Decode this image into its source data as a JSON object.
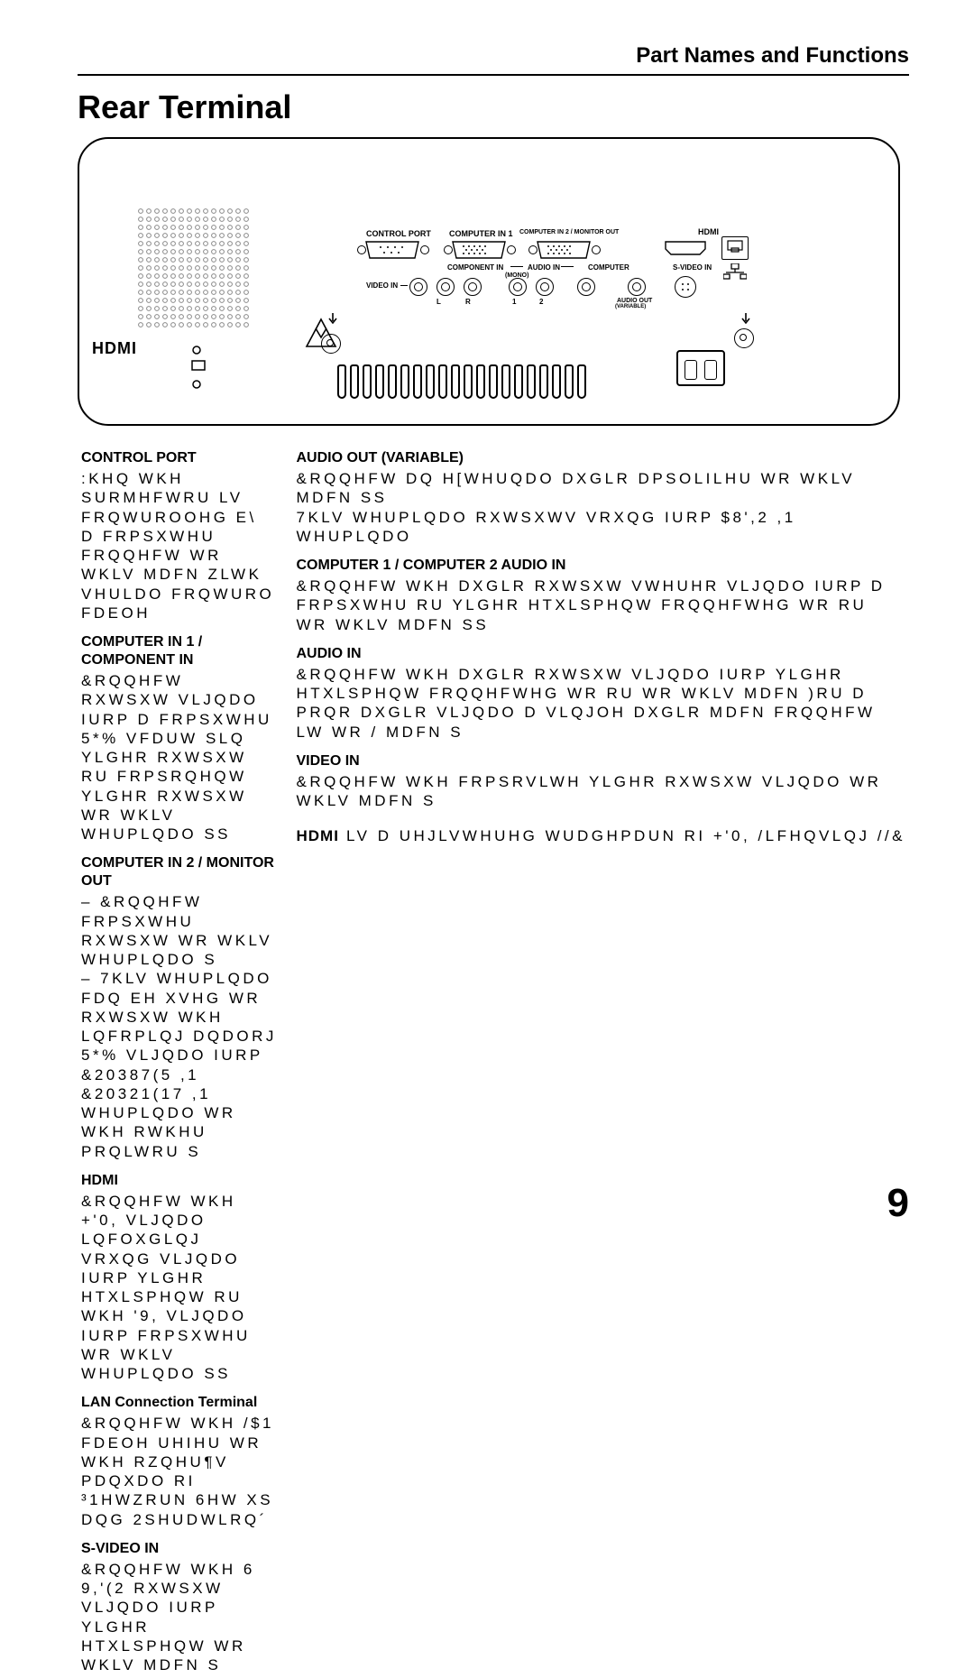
{
  "header": {
    "section_title": "Part Names and Functions"
  },
  "title": "Rear Terminal",
  "page_number": "9",
  "diagram": {
    "hdmi_logo": "HDMI",
    "labels": {
      "control_port": "CONTROL PORT",
      "comp_in_1": "COMPUTER IN 1",
      "comp_in_2_mon": "COMPUTER IN 2 / MONITOR OUT",
      "hdmi": "HDMI",
      "component_in": "COMPONENT IN",
      "audio_in": "AUDIO IN",
      "audio_in_mono": "(MONO)",
      "audio_1": "1",
      "audio_2": "2",
      "computer": "COMPUTER",
      "s_video_in": "S-VIDEO IN",
      "video_in": "VIDEO IN",
      "audio_L": "L",
      "audio_R": "R",
      "audio_out": "AUDIO OUT",
      "variable": "(VARIABLE)"
    }
  },
  "left_col": {
    "control_port": {
      "h": "CONTROL PORT",
      "t": ":KHQ WKH SURMHFWRU LV FRQWUROOHG E\\ D FRPSXWHU FRQQHFW WR WKLV MDFN ZLWK VHULDO FRQWURO FDEOH"
    },
    "cin1": {
      "h": "COMPUTER IN 1 / COMPONENT IN",
      "t": "&RQQHFW RXWSXW VLJQDO IURP D FRPSXWHU 5*% VFDUW  SLQ YLGHR RXWSXW RU FRPSRQHQW YLGHR RXWSXW WR WKLV WHUPLQDO SS "
    },
    "cin2": {
      "h": "COMPUTER IN 2 / MONITOR OUT",
      "t": "– &RQQHFW FRPSXWHU RXWSXW WR WKLV WHUPLQDO S \n– 7KLV WHUPLQDO FDQ EH XVHG WR RXWSXW WKH LQFRPLQJ DQDORJ 5*% VLJQDO IURP &20387(5 ,1  &20321(17 ,1 WHUPLQDO WR WKH RWKHU PRQLWRU S "
    },
    "hdmi": {
      "h": "HDMI",
      "t": "&RQQHFW WKH +'0, VLJQDO LQFOXGLQJ VRXQG VLJQDO IURP YLGHR HTXLSPHQW RU WKH '9, VLJQDO IURP FRPSXWHU WR WKLV WHUPLQDO SS "
    },
    "lan": {
      "h": "LAN Connection Terminal",
      "t": "&RQQHFW WKH /$1 FDEOH UHIHU WR WKH RZQHU¶V PDQXDO RI ³1HWZRUN 6HW XS DQG 2SHUDWLRQ´ "
    },
    "svid": {
      "h": "S-VIDEO IN",
      "t": "&RQQHFW WKH 6 9,'(2 RXWSXW VLJQDO IURP YLGHR HTXLSPHQW WR WKLV MDFN S "
    }
  },
  "right_col": {
    "aout": {
      "h": "AUDIO OUT (VARIABLE)",
      "t": "&RQQHFW DQ H[WHUQDO DXGLR DPSOLILHU WR WKLV MDFN SS  \n7KLV WHUPLQDO RXWSXWV VRXQG IURP $8',2 ,1 WHUPLQDO "
    },
    "cain": {
      "h": "COMPUTER 1 / COMPUTER 2 AUDIO IN",
      "t": "&RQQHFW WKH DXGLR RXWSXW VWHUHR VLJQDO IURP D FRPSXWHU RU YLGHR HTXLSPHQW FRQQHFWHG WR  RU  WR WKLV MDFN SS "
    },
    "ain": {
      "h": "AUDIO IN",
      "t": "&RQQHFW WKH DXGLR RXWSXW VLJQDO IURP YLGHR HTXLSPHQW FRQQHFWHG WR  RU  WR WKLV MDFN )RU D PRQR DXGLR VLJQDO D VLQJOH DXGLR MDFN  FRQQHFW LW WR / MDFN S "
    },
    "vin": {
      "h": "VIDEO IN",
      "t": "&RQQHFW WKH FRPSRVLWH YLGHR RXWSXW VLJQDO WR WKLV MDFN S "
    },
    "footnote": {
      "logo": "HDMI",
      "t": "LV D UHJLVWHUHG WUDGHPDUN RI +'0, /LFHQVLQJ //&"
    }
  }
}
